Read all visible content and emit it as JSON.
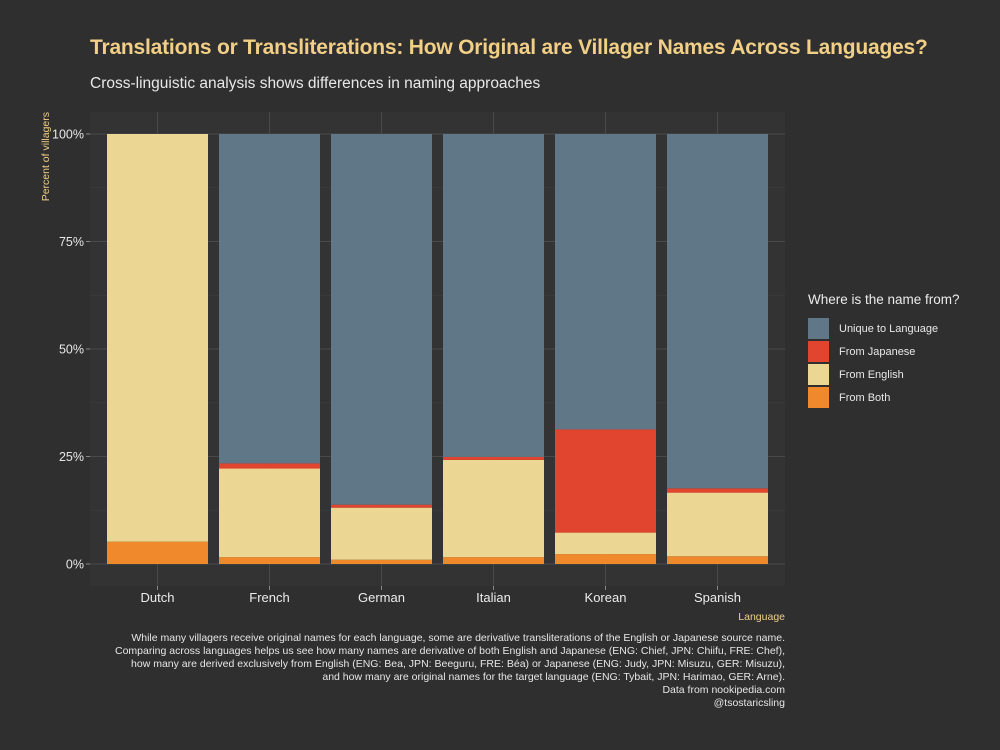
{
  "title": "Translations or Transliterations: How Original are Villager Names Across Languages?",
  "subtitle": "Cross-linguistic analysis shows differences in naming approaches",
  "legend": {
    "title": "Where is the name from?"
  },
  "colors": {
    "background": "#2f2f2f",
    "panel": "#333333",
    "grid": "#4a4a4a",
    "accent_title": "#f2cf86"
  },
  "caption_lines": [
    "While many villagers receive original names for each language, some are derivative transliterations of the English or Japanese source name.",
    "Comparing across languages helps us see how many names are derivative of both English and Japanese (ENG: Chief, JPN: Chiifu, FRE: Chef),",
    "how many are derived exclusively from English (ENG: Bea, JPN: Beeguru, FRE: Béa) or Japanese (ENG: Judy, JPN: Misuzu, GER: Misuzu),",
    "and how many are original names for the target language (ENG: Tybait, JPN: Harimao, GER: Arne).",
    "Data from nookipedia.com",
    "@tsostaricsling"
  ],
  "chart_data": {
    "type": "bar",
    "stacked": true,
    "xlabel": "Language",
    "ylabel": "Percent of villagers",
    "ylim": [
      0,
      100
    ],
    "yticks": [
      0,
      25,
      50,
      75,
      100
    ],
    "ytick_labels": [
      "0%",
      "25%",
      "50%",
      "75%",
      "100%"
    ],
    "categories": [
      "Dutch",
      "French",
      "German",
      "Italian",
      "Korean",
      "Spanish"
    ],
    "series": [
      {
        "name": "From Both",
        "color": "#f0892b",
        "values": [
          5.2,
          1.6,
          1.0,
          1.6,
          2.3,
          1.8
        ]
      },
      {
        "name": "From English",
        "color": "#ebd694",
        "values": [
          94.8,
          20.6,
          12.1,
          22.6,
          5.0,
          14.8
        ]
      },
      {
        "name": "From Japanese",
        "color": "#e2452f",
        "values": [
          0,
          1.2,
          0.7,
          0.7,
          24.0,
          1.0
        ]
      },
      {
        "name": "Unique to Language",
        "color": "#607788",
        "values": [
          0,
          76.6,
          86.2,
          75.1,
          68.7,
          82.4
        ]
      }
    ],
    "legend_order": [
      "Unique to Language",
      "From Japanese",
      "From English",
      "From Both"
    ],
    "grid": true,
    "legend_position": "right"
  }
}
